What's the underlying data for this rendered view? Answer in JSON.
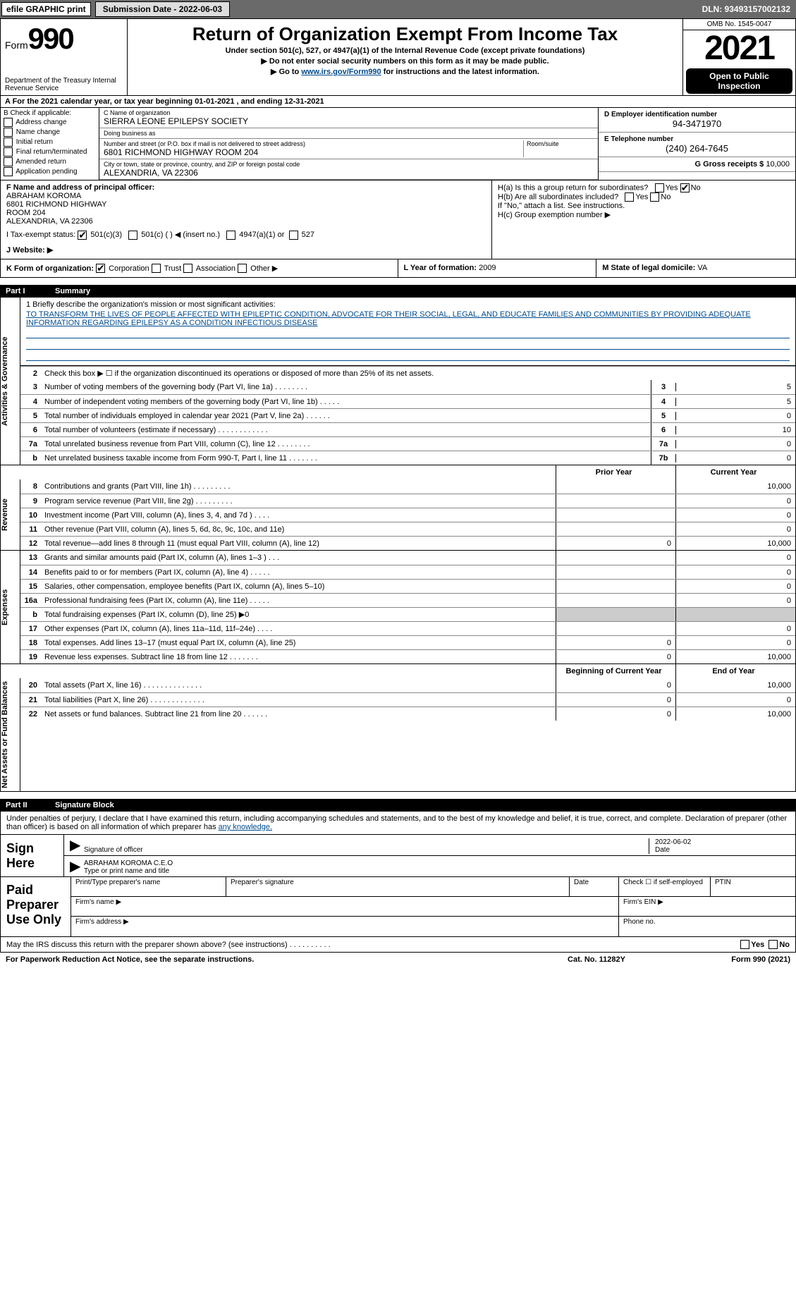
{
  "topbar": {
    "efile": "efile GRAPHIC print",
    "submission_btn": "Submission Date - 2022-06-03",
    "dln": "DLN: 93493157002132"
  },
  "header": {
    "form_prefix": "Form",
    "form_num": "990",
    "dept": "Department of the Treasury Internal Revenue Service",
    "title": "Return of Organization Exempt From Income Tax",
    "sub": "Under section 501(c), 527, or 4947(a)(1) of the Internal Revenue Code (except private foundations)",
    "arrow1": "▶ Do not enter social security numbers on this form as it may be made public.",
    "arrow2_pre": "▶ Go to ",
    "arrow2_link": "www.irs.gov/Form990",
    "arrow2_post": " for instructions and the latest information.",
    "omb": "OMB No. 1545-0047",
    "year": "2021",
    "open": "Open to Public Inspection"
  },
  "row_a": "A For the 2021 calendar year, or tax year beginning 01-01-2021     , and ending 12-31-2021",
  "col_b": {
    "hdr": "B Check if applicable:",
    "items": [
      "Address change",
      "Name change",
      "Initial return",
      "Final return/terminated",
      "Amended return",
      "Application pending"
    ]
  },
  "col_mid": {
    "c_label": "C Name of organization",
    "c_val": "SIERRA LEONE EPILEPSY SOCIETY",
    "dba_label": "Doing business as",
    "dba_val": "",
    "addr_label": "Number and street (or P.O. box if mail is not delivered to street address)",
    "room_label": "Room/suite",
    "addr_val": "6801 RICHMOND HIGHWAY ROOM 204",
    "city_label": "City or town, state or province, country, and ZIP or foreign postal code",
    "city_val": "ALEXANDRIA, VA   22306",
    "f_label": "F  Name and address of principal officer:",
    "f_val": "ABRAHAM KOROMA\n6801 RICHMOND HIGHWAY\nROOM 204\nALEXANDRIA, VA   22306"
  },
  "col_right": {
    "d_label": "D Employer identification number",
    "d_val": "94-3471970",
    "e_label": "E Telephone number",
    "e_val": "(240) 264-7645",
    "g_label": "G Gross receipts $",
    "g_val": "10,000"
  },
  "section_h": {
    "ha": "H(a)  Is this a group return for subordinates?",
    "hb": "H(b)  Are all subordinates included?",
    "hb_note": "If \"No,\" attach a list. See instructions.",
    "hc": "H(c)  Group exemption number ▶",
    "yes": "Yes",
    "no": "No"
  },
  "row_i": {
    "label": "I   Tax-exempt status:",
    "opt1": "501(c)(3)",
    "opt2": "501(c) (   ) ◀ (insert no.)",
    "opt3": "4947(a)(1) or",
    "opt4": "527"
  },
  "row_j": {
    "label": "J   Website: ▶"
  },
  "row_k": {
    "label": "K Form of organization:",
    "opts": [
      "Corporation",
      "Trust",
      "Association",
      "Other ▶"
    ]
  },
  "row_l": {
    "label": "L Year of formation:",
    "val": "2009"
  },
  "row_m": {
    "label": "M State of legal domicile:",
    "val": "VA"
  },
  "parts": {
    "p1": "Part I",
    "p1_title": "Summary",
    "p2": "Part II",
    "p2_title": "Signature Block"
  },
  "summary": {
    "line1_label": "1   Briefly describe the organization's mission or most significant activities:",
    "mission": "TO TRANSFORM THE LIVES OF PEOPLE AFFECTED WITH EPILEPTIC CONDITION, ADVOCATE FOR THEIR SOCIAL, LEGAL, AND EDUCATE FAMILIES AND COMMUNITIES BY PROVIDING ADEQUATE INFORMATION REGARDING EPILEPSY AS A CONDITION INFECTIOUS DISEASE",
    "line2": "Check this box ▶ ☐  if the organization discontinued its operations or disposed of more than 25% of its net assets.",
    "sections": {
      "gov": "Activities & Governance",
      "rev": "Revenue",
      "exp": "Expenses",
      "net": "Net Assets or Fund Balances"
    },
    "gov_rows": [
      {
        "n": "3",
        "d": "Number of voting members of the governing body (Part VI, line 1a)   .    .    .    .    .    .    .    .",
        "box": "3",
        "v": "5"
      },
      {
        "n": "4",
        "d": "Number of independent voting members of the governing body (Part VI, line 1b)  .    .    .    .    .",
        "box": "4",
        "v": "5"
      },
      {
        "n": "5",
        "d": "Total number of individuals employed in calendar year 2021 (Part V, line 2a) .    .    .    .    .    .",
        "box": "5",
        "v": "0"
      },
      {
        "n": "6",
        "d": "Total number of volunteers (estimate if necessary)    .    .    .    .    .    .    .    .    .    .    .    .",
        "box": "6",
        "v": "10"
      },
      {
        "n": "7a",
        "d": "Total unrelated business revenue from Part VIII, column (C), line 12  .    .    .    .    .    .    .    .",
        "box": "7a",
        "v": "0"
      },
      {
        "n": "b",
        "d": "Net unrelated business taxable income from Form 990-T, Part I, line 11  .    .    .    .    .    .    .",
        "box": "7b",
        "v": "0"
      }
    ],
    "col_prior": "Prior Year",
    "col_curr": "Current Year",
    "rev_rows": [
      {
        "n": "8",
        "d": "Contributions and grants (Part VIII, line 1h)    .    .    .    .    .    .    .    .    .",
        "p": "",
        "c": "10,000"
      },
      {
        "n": "9",
        "d": "Program service revenue (Part VIII, line 2g)   .    .    .    .    .    .    .    .    .",
        "p": "",
        "c": "0"
      },
      {
        "n": "10",
        "d": "Investment income (Part VIII, column (A), lines 3, 4, and 7d )    .    .    .    .",
        "p": "",
        "c": "0"
      },
      {
        "n": "11",
        "d": "Other revenue (Part VIII, column (A), lines 5, 6d, 8c, 9c, 10c, and 11e)",
        "p": "",
        "c": "0"
      },
      {
        "n": "12",
        "d": "Total revenue—add lines 8 through 11 (must equal Part VIII, column (A), line 12)",
        "p": "0",
        "c": "10,000"
      }
    ],
    "exp_rows": [
      {
        "n": "13",
        "d": "Grants and similar amounts paid (Part IX, column (A), lines 1–3 )  .    .    .",
        "p": "",
        "c": "0"
      },
      {
        "n": "14",
        "d": "Benefits paid to or for members (Part IX, column (A), line 4)  .    .    .    .    .",
        "p": "",
        "c": "0"
      },
      {
        "n": "15",
        "d": "Salaries, other compensation, employee benefits (Part IX, column (A), lines 5–10)",
        "p": "",
        "c": "0"
      },
      {
        "n": "16a",
        "d": "Professional fundraising fees (Part IX, column (A), line 11e)  .    .    .    .    .",
        "p": "",
        "c": "0"
      },
      {
        "n": "b",
        "d": "Total fundraising expenses (Part IX, column (D), line 25) ▶0",
        "p": "shaded",
        "c": "shaded"
      },
      {
        "n": "17",
        "d": "Other expenses (Part IX, column (A), lines 11a–11d, 11f–24e)   .    .    .    .",
        "p": "",
        "c": "0"
      },
      {
        "n": "18",
        "d": "Total expenses. Add lines 13–17 (must equal Part IX, column (A), line 25)",
        "p": "0",
        "c": "0"
      },
      {
        "n": "19",
        "d": "Revenue less expenses. Subtract line 18 from line 12  .    .    .    .    .    .    .",
        "p": "0",
        "c": "10,000"
      }
    ],
    "col_beg": "Beginning of Current Year",
    "col_end": "End of Year",
    "net_rows": [
      {
        "n": "20",
        "d": "Total assets (Part X, line 16)  .    .    .    .    .    .    .    .    .    .    .    .    .    .",
        "p": "0",
        "c": "10,000"
      },
      {
        "n": "21",
        "d": "Total liabilities (Part X, line 26)  .    .    .    .    .    .    .    .    .    .    .    .    .",
        "p": "0",
        "c": "0"
      },
      {
        "n": "22",
        "d": "Net assets or fund balances. Subtract line 21 from line 20  .    .    .    .    .    .",
        "p": "0",
        "c": "10,000"
      }
    ]
  },
  "sig": {
    "text_pre": "Under penalties of perjury, I declare that I have examined this return, including accompanying schedules and statements, and to the best of my knowledge and belief, it is true, correct, and complete. Declaration of preparer (other than officer) is based on all information of which preparer has ",
    "text_link": "any knowledge.",
    "sign_here": "Sign Here",
    "sig_officer": "Signature of officer",
    "sig_date": "2022-06-02",
    "date_label": "Date",
    "name_val": "ABRAHAM KOROMA  C.E.O",
    "name_label": "Type or print name and title",
    "paid": "Paid Preparer Use Only",
    "pp_name": "Print/Type preparer's name",
    "pp_sig": "Preparer's signature",
    "pp_date": "Date",
    "pp_check": "Check ☐ if self-employed",
    "pp_ptin": "PTIN",
    "firm_name": "Firm's name   ▶",
    "firm_ein": "Firm's EIN ▶",
    "firm_addr": "Firm's address ▶",
    "phone": "Phone no."
  },
  "footer": {
    "q": "May the IRS discuss this return with the preparer shown above? (see instructions)   .    .    .    .    .    .    .    .    .    .",
    "yes": "Yes",
    "no": "No",
    "pra": "For Paperwork Reduction Act Notice, see the separate instructions.",
    "cat": "Cat. No. 11282Y",
    "form": "Form 990 (2021)"
  }
}
